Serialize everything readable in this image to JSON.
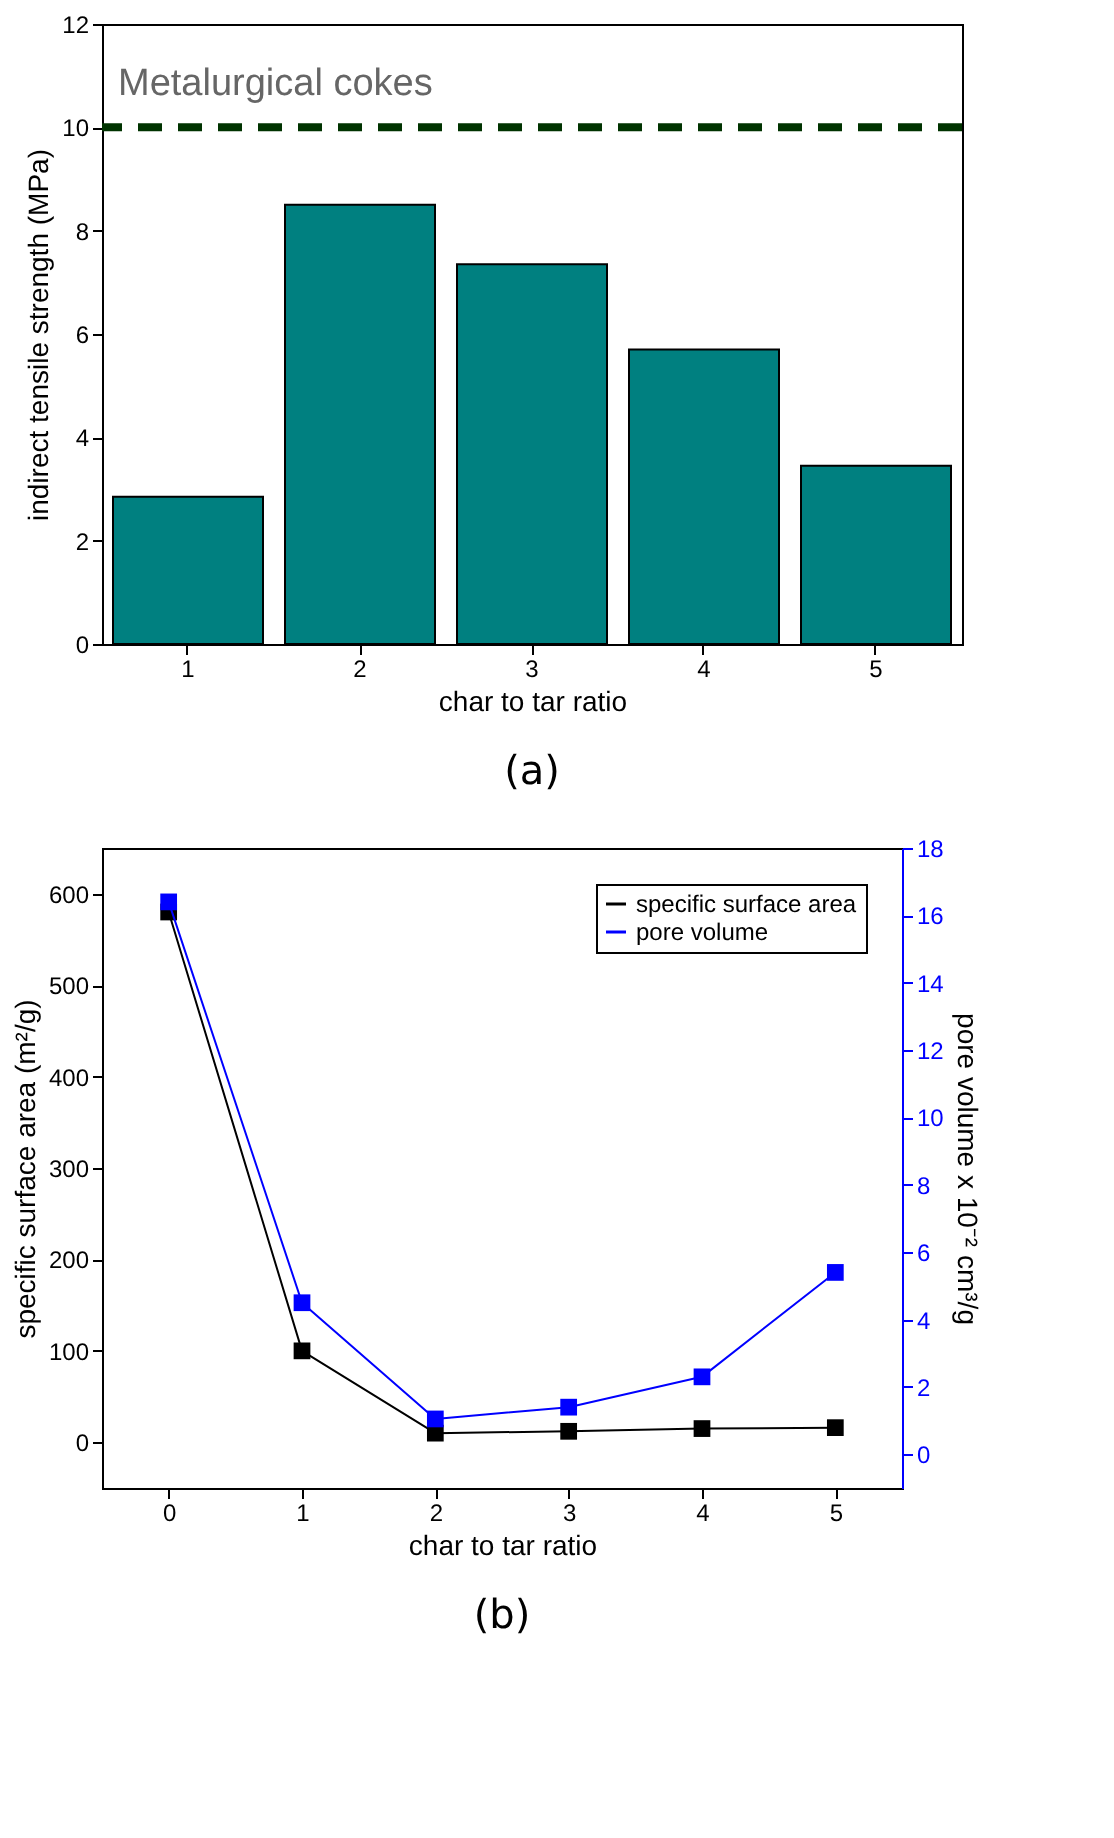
{
  "chart_data": [
    {
      "type": "bar",
      "categories": [
        "1",
        "2",
        "3",
        "4",
        "5"
      ],
      "values": [
        2.85,
        8.5,
        7.35,
        5.7,
        3.45
      ],
      "color": "#008080",
      "xlabel": "char to tar ratio",
      "ylabel": "indirect tensile strength (MPa)",
      "ylim": [
        0,
        12
      ],
      "yticks": [
        0,
        2,
        4,
        6,
        8,
        10,
        12
      ],
      "grid": false,
      "ref_lines": [
        {
          "axis": "y",
          "value": 10,
          "label": "Metalurgical cokes",
          "color": "#003300",
          "line_style": "dashed"
        }
      ],
      "annotations": [
        "(a)"
      ]
    },
    {
      "type": "line",
      "x": [
        0,
        1,
        2,
        3,
        4,
        5
      ],
      "xlim": [
        -0.5,
        5.5
      ],
      "xticks": [
        0,
        1,
        2,
        3,
        4,
        5
      ],
      "xlabel": "char to tar ratio",
      "ylabel": "specific surface area (m²/g)",
      "y2label": "pore volume x 10⁻² cm³/g",
      "ylim": [
        -50,
        650
      ],
      "yticks": [
        0,
        100,
        200,
        300,
        400,
        500,
        600
      ],
      "y2lim": [
        -1,
        18
      ],
      "y2ticks": [
        0,
        2,
        4,
        6,
        8,
        10,
        12,
        14,
        16,
        18
      ],
      "marker": "square",
      "line_style": "solid",
      "legend": "top right",
      "grid": false,
      "series": [
        {
          "name": "specific surface area",
          "color": "#000000",
          "values": [
            580,
            100,
            10,
            12,
            15,
            16
          ]
        },
        {
          "name": "pore volume",
          "color": "#0000ff",
          "axis": "y2",
          "values": [
            16.4,
            4.5,
            1.05,
            1.4,
            2.3,
            5.4
          ]
        }
      ],
      "annotations": [
        "(b)"
      ]
    }
  ]
}
